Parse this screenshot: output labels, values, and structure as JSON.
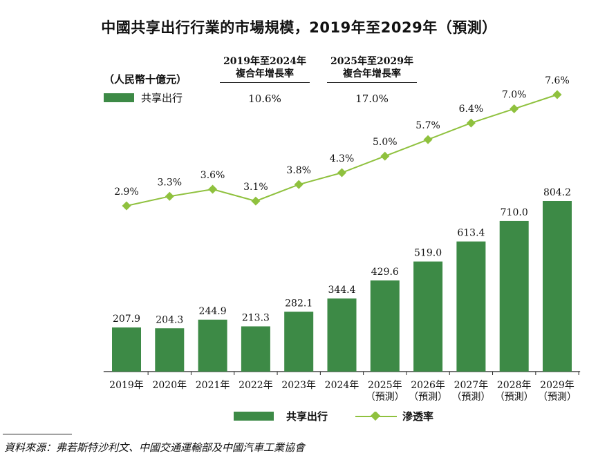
{
  "title": "中國共享出行行業的市場規模，2019年至2029年（預測）",
  "unit_label": "（人民幣十億元）",
  "cagr": [
    {
      "header_line1": "2019年至2024年",
      "header_line2": "複合年增長率",
      "value": "10.6%"
    },
    {
      "header_line1": "2025年至2029年",
      "header_line2": "複合年增長率",
      "value": "17.0%"
    }
  ],
  "source": "資料來源：弗若斯特沙利文、中國交通運輸部及中國汽車工業協會",
  "colors": {
    "bar": "#3d8a46",
    "line": "#8fc13e",
    "marker": "#8fc13e"
  },
  "chart_data": {
    "type": "bar+line",
    "categories": [
      {
        "year": "2019年",
        "sub": ""
      },
      {
        "year": "2020年",
        "sub": ""
      },
      {
        "year": "2021年",
        "sub": ""
      },
      {
        "year": "2022年",
        "sub": ""
      },
      {
        "year": "2023年",
        "sub": ""
      },
      {
        "year": "2024年",
        "sub": ""
      },
      {
        "year": "2025年",
        "sub": "（預測）"
      },
      {
        "year": "2026年",
        "sub": "（預測）"
      },
      {
        "year": "2027年",
        "sub": "（預測）"
      },
      {
        "year": "2028年",
        "sub": "（預測）"
      },
      {
        "year": "2029年",
        "sub": "（預測）"
      }
    ],
    "series": [
      {
        "name": "共享出行",
        "type": "bar",
        "values": [
          207.9,
          204.3,
          244.9,
          213.3,
          282.1,
          344.4,
          429.6,
          519.0,
          613.4,
          710.0,
          804.2
        ],
        "labels": [
          "207.9",
          "204.3",
          "244.9",
          "213.3",
          "282.1",
          "344.4",
          "429.6",
          "519.0",
          "613.4",
          "710.0",
          "804.2"
        ]
      },
      {
        "name": "滲透率",
        "type": "line",
        "unit": "%",
        "values": [
          2.9,
          3.3,
          3.6,
          3.1,
          3.8,
          4.3,
          5.0,
          5.7,
          6.4,
          7.0,
          7.6
        ],
        "labels": [
          "2.9%",
          "3.3%",
          "3.6%",
          "3.1%",
          "3.8%",
          "4.3%",
          "5.0%",
          "5.7%",
          "6.4%",
          "7.0%",
          "7.6%"
        ]
      }
    ],
    "legend": {
      "bar": "共享出行",
      "line": "滲透率"
    },
    "legend_top_label": "共享出行",
    "ylim_bar": [
      0,
      804.2
    ],
    "ylim_line": [
      2.9,
      7.6
    ],
    "grid": false
  }
}
